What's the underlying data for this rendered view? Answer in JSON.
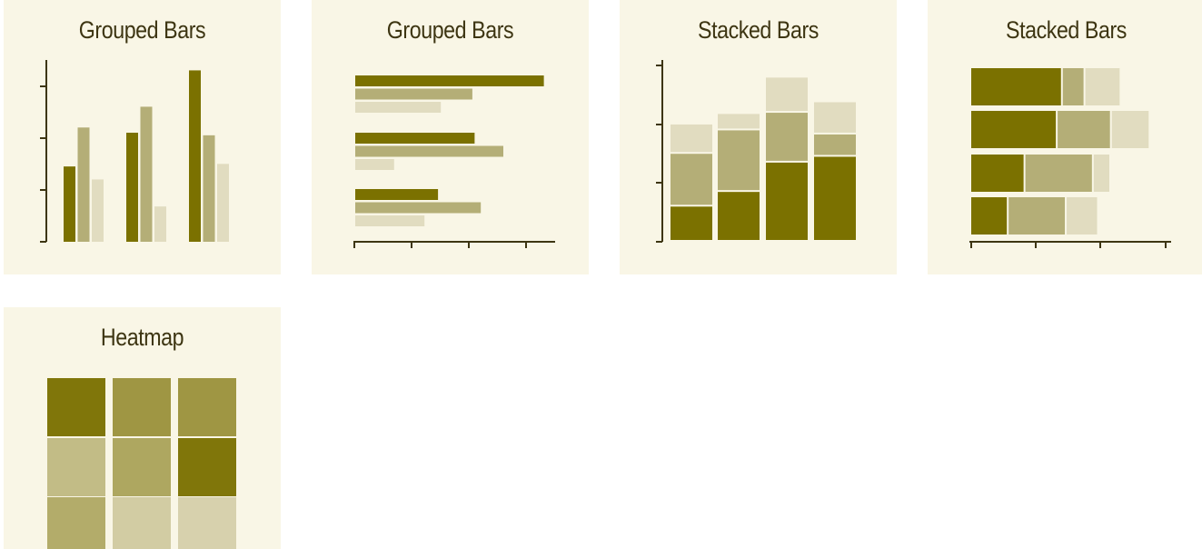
{
  "colors": {
    "card_bg": "#f9f6e6",
    "axis": "#3d3512",
    "dark": "#7b7100",
    "mid": "#b4ae77",
    "light": "#e1dcc0"
  },
  "chart_data": [
    {
      "type": "bar",
      "orientation": "vertical",
      "title": "Grouped Bars",
      "categories": [
        "",
        "",
        ""
      ],
      "series": [
        {
          "values": [
            1.45,
            2.1,
            3.3
          ]
        },
        {
          "values": [
            2.2,
            2.6,
            2.05
          ]
        },
        {
          "values": [
            1.2,
            0.68,
            1.5
          ]
        }
      ],
      "ylim": [
        0,
        3.5
      ],
      "yticks": 4,
      "grid": false
    },
    {
      "type": "bar",
      "orientation": "horizontal",
      "title": "Grouped Bars",
      "categories": [
        "",
        "",
        ""
      ],
      "series": [
        {
          "values": [
            3.35,
            2.12,
            1.47
          ]
        },
        {
          "values": [
            2.08,
            2.63,
            2.23
          ]
        },
        {
          "values": [
            1.52,
            0.69,
            1.23
          ]
        }
      ],
      "xlim": [
        0,
        3.55
      ],
      "xticks": 4,
      "grid": false
    },
    {
      "type": "bar",
      "orientation": "vertical",
      "stacked": true,
      "title": "Stacked Bars",
      "categories": [
        "",
        "",
        "",
        ""
      ],
      "series": [
        {
          "values": [
            0.6,
            0.85,
            1.35,
            1.45
          ]
        },
        {
          "values": [
            0.9,
            1.05,
            0.85,
            0.38
          ]
        },
        {
          "values": [
            0.5,
            0.28,
            0.6,
            0.55
          ]
        }
      ],
      "ylim": [
        0,
        3.1
      ],
      "yticks": 3,
      "grid": false
    },
    {
      "type": "bar",
      "orientation": "horizontal",
      "stacked": true,
      "title": "Stacked Bars",
      "categories": [
        "",
        "",
        "",
        ""
      ],
      "series": [
        {
          "values": [
            1.42,
            1.34,
            0.84,
            0.58
          ]
        },
        {
          "values": [
            0.35,
            0.84,
            1.06,
            0.9
          ]
        },
        {
          "values": [
            0.56,
            0.6,
            0.27,
            0.5
          ]
        }
      ],
      "xlim": [
        0,
        3.1
      ],
      "xticks": 3,
      "grid": false
    },
    {
      "type": "heatmap",
      "title": "Heatmap",
      "values": [
        [
          0.95,
          0.65,
          0.65
        ],
        [
          0.3,
          0.5,
          0.95
        ],
        [
          0.45,
          0.15,
          0.1
        ]
      ]
    }
  ]
}
